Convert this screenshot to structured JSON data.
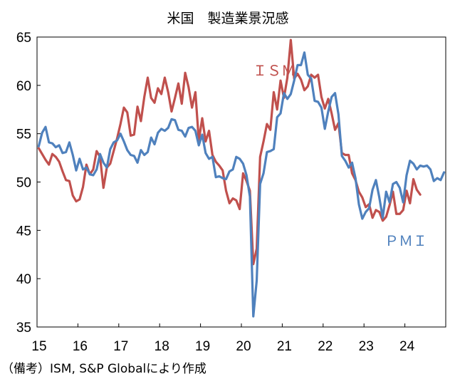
{
  "chart_data": {
    "type": "line",
    "title": "米国　製造業景況感",
    "note": "（備考）ISM, S&P Globalにより作成",
    "xlabel": "",
    "ylabel": "",
    "ylim": [
      35,
      65
    ],
    "yticks": [
      35,
      40,
      45,
      50,
      55,
      60,
      65
    ],
    "xticks": [
      "15",
      "16",
      "17",
      "18",
      "19",
      "20",
      "21",
      "22",
      "23",
      "24"
    ],
    "xstart_year": 2015,
    "grid": false,
    "series": [
      {
        "name": "ＩＳＭ",
        "color": "#c0504d",
        "values": [
          53.5,
          52.9,
          52.3,
          51.8,
          52.9,
          52.6,
          52.1,
          51.1,
          50.2,
          50.1,
          48.6,
          48.0,
          48.2,
          49.5,
          51.8,
          50.8,
          51.3,
          53.2,
          52.6,
          49.4,
          51.5,
          51.9,
          53.2,
          54.5,
          56.0,
          57.7,
          57.2,
          54.8,
          54.9,
          57.8,
          56.3,
          58.8,
          60.8,
          58.7,
          58.2,
          59.7,
          59.1,
          60.8,
          59.3,
          57.3,
          58.7,
          60.2,
          58.1,
          61.3,
          59.8,
          57.7,
          59.3,
          54.3,
          56.6,
          54.2,
          55.3,
          52.8,
          52.1,
          51.7,
          51.2,
          49.1,
          47.8,
          48.3,
          48.1,
          47.2,
          50.9,
          50.1,
          49.1,
          41.5,
          43.1,
          52.6,
          54.2,
          56.0,
          55.4,
          59.3,
          57.5,
          60.5,
          58.7,
          60.8,
          64.7,
          60.7,
          61.2,
          60.6,
          59.5,
          59.9,
          61.1,
          60.8,
          61.1,
          58.8,
          57.6,
          58.6,
          57.1,
          55.4,
          56.1,
          53.0,
          52.8,
          52.8,
          50.9,
          50.2,
          49.0,
          48.4,
          47.4,
          47.7,
          46.3,
          47.1,
          46.9,
          46.0,
          46.4,
          47.6,
          49.0,
          46.7,
          46.7,
          47.1,
          49.1,
          47.8,
          50.3,
          49.2,
          48.7
        ]
      },
      {
        "name": "ＰＭＩ",
        "color": "#4f81bd",
        "values": [
          53.7,
          55.1,
          55.7,
          54.1,
          54.0,
          53.6,
          53.8,
          53.0,
          53.1,
          54.1,
          52.8,
          51.2,
          52.4,
          51.3,
          51.5,
          50.8,
          50.7,
          51.3,
          52.9,
          52.0,
          51.5,
          53.4,
          54.1,
          54.3,
          55.0,
          54.2,
          53.3,
          52.8,
          52.7,
          52.0,
          53.3,
          52.8,
          53.1,
          54.6,
          53.9,
          55.1,
          55.5,
          55.3,
          55.6,
          56.5,
          56.4,
          55.4,
          55.3,
          54.7,
          55.6,
          55.7,
          55.3,
          53.8,
          54.9,
          53.0,
          52.4,
          52.6,
          50.5,
          50.6,
          50.4,
          50.3,
          51.1,
          51.3,
          52.6,
          52.4,
          51.9,
          50.7,
          48.5,
          36.1,
          39.8,
          49.8,
          50.9,
          53.1,
          53.2,
          53.4,
          56.7,
          57.1,
          59.2,
          58.6,
          59.1,
          60.5,
          62.1,
          62.1,
          63.4,
          61.1,
          60.7,
          58.4,
          58.3,
          57.7,
          55.5,
          57.3,
          58.8,
          59.2,
          57.0,
          52.7,
          52.2,
          51.5,
          52.0,
          50.4,
          47.7,
          46.2,
          46.9,
          47.3,
          49.2,
          50.2,
          48.4,
          46.3,
          49.0,
          47.9,
          49.8,
          50.0,
          49.4,
          47.9,
          50.7,
          52.2,
          51.9,
          51.3,
          51.7,
          51.6,
          51.7,
          51.3,
          50.1,
          50.4,
          50.2,
          51.0
        ]
      }
    ]
  }
}
